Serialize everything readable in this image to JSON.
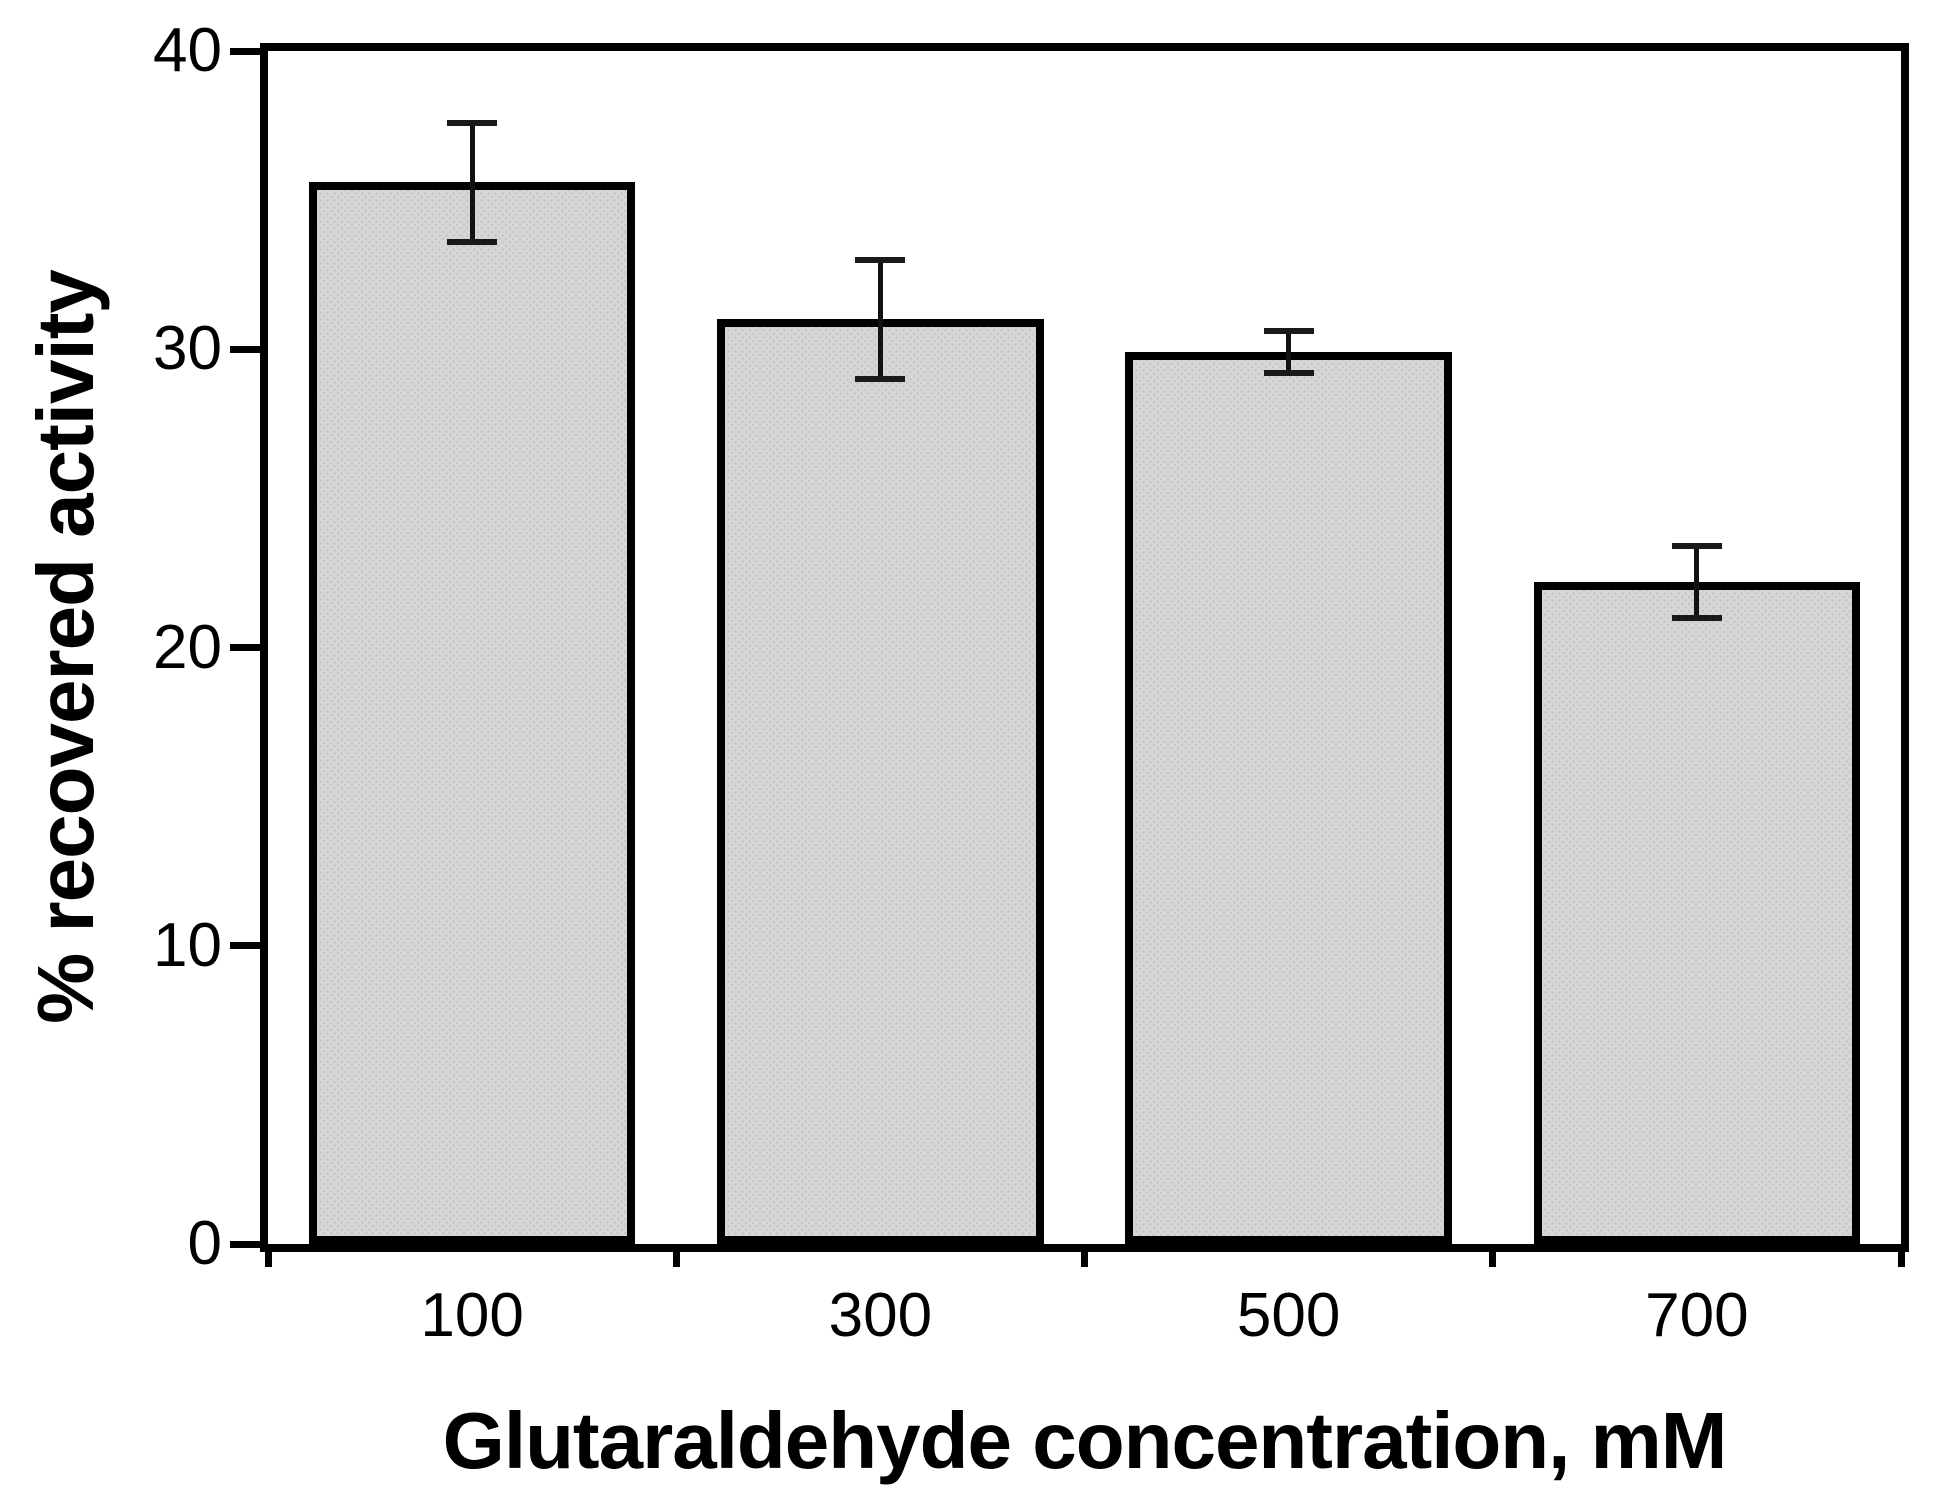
{
  "chart_data": {
    "type": "bar",
    "xlabel": "Glutaraldehyde concentration, mM",
    "ylabel": "% recovered activity",
    "categories": [
      "100",
      "300",
      "500",
      "700"
    ],
    "values": [
      35.6,
      31.0,
      29.9,
      22.2
    ],
    "errors": [
      2.0,
      2.0,
      0.7,
      1.2
    ],
    "y_ticks": [
      0,
      10,
      20,
      30,
      40
    ],
    "ylim": [
      0,
      40
    ],
    "grid": false,
    "legend_position": "none",
    "frame": "full-box",
    "bar_width_fraction": 0.8,
    "colors": {
      "axis": "#000000",
      "bar_fill": "#d6d6d6",
      "bar_texture_dot": "#c2c2c2",
      "bar_outline": "#000000",
      "error_bar": "#111111",
      "background": "#ffffff",
      "text": "#000000"
    }
  }
}
